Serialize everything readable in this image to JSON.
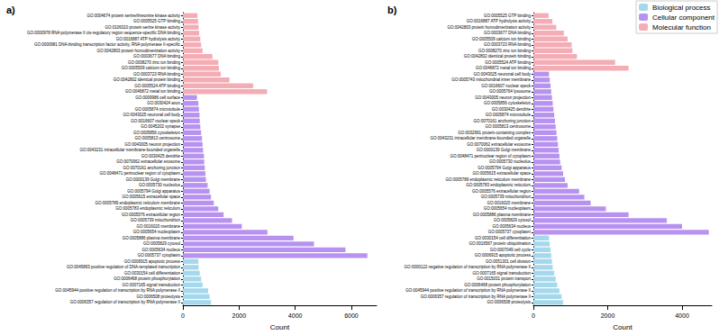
{
  "chart_data": [
    {
      "type": "bar",
      "title": "a)",
      "orientation": "horizontal",
      "grid": false,
      "x_label": "Count",
      "xlim": [
        0,
        6900
      ],
      "xticks": [
        0,
        2000,
        4000,
        6000
      ],
      "categories": [
        "GO:0004674 protein serine/threonine kinase activity",
        "GO:0005525 GTP binding",
        "GO:0106310 protein serine kinase activity",
        "GO:0000978 RNA polymerase II cis-regulatory region sequence-specific DNA binding",
        "GO:0016887 ATP hydrolysis activity",
        "GO:0000981 DNA-binding transcription factor activity, RNA polymerase II-specific",
        "GO:0042803 protein homodimerization activity",
        "GO:0003677 DNA binding",
        "GO:0008270 zinc ion binding",
        "GO:0005509 calcium ion binding",
        "GO:0003723 RNA binding",
        "GO:0042802 identical protein binding",
        "GO:0005524 ATP binding",
        "GO:0046872 metal ion binding",
        "GO:0009986 cell surface",
        "GO:0030424 axon",
        "GO:0005874 microtubule",
        "GO:0043025 neuronal cell body",
        "GO:0016607 nuclear speck",
        "GO:0045202 synapse",
        "GO:0005856 cytoskeleton",
        "GO:0005813 centrosome",
        "GO:0043005 neuron projection",
        "GO:0043231 intracellular membrane-bounded organelle",
        "GO:0030425 dendrite",
        "GO:0070062 extracellular exosome",
        "GO:0070161 anchoring junction",
        "GO:0048471 perinuclear region of cytoplasm",
        "GO:0000139 Golgi membrane",
        "GO:0005730 nucleolus",
        "GO:0005794 Golgi apparatus",
        "GO:0005615 extracellular space",
        "GO:0005789 endoplasmic reticulum membrane",
        "GO:0005783 endoplasmic reticulum",
        "GO:0005576 extracellular region",
        "GO:0005739 mitochondrion",
        "GO:0016020 membrane",
        "GO:0005654 nucleoplasm",
        "GO:0005886 plasma membrane",
        "GO:0005829 cytosol",
        "GO:0005634 nucleus",
        "GO:0005737 cytoplasm",
        "GO:0006915 apoptotic process",
        "GO:0045893 positive regulation of DNA-templated transcription",
        "GO:0030154 cell differentiation",
        "GO:0006468 protein phosphorylation",
        "GO:0007165 signal transduction",
        "GO:0045944 positive regulation of transcription by RNA polymerase II",
        "GO:0006508 proteolysis",
        "GO:0006357 regulation of transcription by RNA polymerase II"
      ],
      "series": [
        {
          "color": "#a5d8ec",
          "values": [
            null,
            null,
            null,
            null,
            null,
            null,
            null,
            null,
            null,
            null,
            null,
            null,
            null,
            null,
            null,
            null,
            null,
            null,
            null,
            null,
            null,
            null,
            null,
            null,
            null,
            null,
            null,
            null,
            null,
            null,
            null,
            null,
            null,
            null,
            null,
            null,
            null,
            null,
            null,
            null,
            null,
            null,
            550,
            560,
            600,
            650,
            700,
            900,
            950,
            1000
          ]
        },
        {
          "color": "#b792f0",
          "values": [
            null,
            null,
            null,
            null,
            null,
            null,
            null,
            null,
            null,
            null,
            null,
            null,
            null,
            null,
            500,
            550,
            570,
            590,
            600,
            620,
            650,
            680,
            700,
            720,
            750,
            760,
            780,
            800,
            820,
            880,
            950,
            1000,
            1100,
            1260,
            1450,
            1750,
            2100,
            3010,
            3940,
            4670,
            5790,
            6570,
            null,
            null,
            null,
            null,
            null,
            null,
            null,
            null
          ]
        },
        {
          "color": "#f4adb5",
          "values": [
            520,
            540,
            560,
            580,
            620,
            650,
            700,
            1050,
            1260,
            1280,
            1350,
            1660,
            2500,
            3000,
            null,
            null,
            null,
            null,
            null,
            null,
            null,
            null,
            null,
            null,
            null,
            null,
            null,
            null,
            null,
            null,
            null,
            null,
            null,
            null,
            null,
            null,
            null,
            null,
            null,
            null,
            null,
            null,
            null,
            null,
            null,
            null,
            null,
            null,
            null,
            null
          ]
        }
      ]
    },
    {
      "type": "bar",
      "title": "b)",
      "orientation": "horizontal",
      "grid": false,
      "legend": "upper right",
      "x_label": "Count",
      "xlim": [
        0,
        4800
      ],
      "xticks": [
        0,
        2000,
        4000
      ],
      "categories": [
        "GO:0005525 GTP binding",
        "GO:0016887 ATP hydrolysis activity",
        "GO:0042803 protein homodimerization activity",
        "GO:0003677 DNA binding",
        "GO:0005509 calcium ion binding",
        "GO:0003723 RNA binding",
        "GO:0008270 zinc ion binding",
        "GO:0042802 identical protein binding",
        "GO:0005524 ATP binding",
        "GO:0046872 metal ion binding",
        "GO:0043025 neuronal cell body",
        "GO:0005743 mitochondrial inner membrane",
        "GO:0016607 nuclear speck",
        "GO:0005764 lysosome",
        "GO:0043005 neuron projection",
        "GO:0005856 cytoskeleton",
        "GO:0030425 dendrite",
        "GO:0005874 microtubule",
        "GO:0070161 anchoring junction",
        "GO:0005813 centrosome",
        "GO:0032991 protein-containing complex",
        "GO:0043231 intracellular membrane-bounded organelle",
        "GO:0070062 extracellular exosome",
        "GO:0000139 Golgi membrane",
        "GO:0048471 perinuclear region of cytoplasm",
        "GO:0005730 nucleolus",
        "GO:0005794 Golgi apparatus",
        "GO:0005615 extracellular space",
        "GO:0005789 endoplasmic reticulum membrane",
        "GO:0005783 endoplasmic reticulum",
        "GO:0005576 extracellular region",
        "GO:0005739 mitochondrion",
        "GO:0016020 membrane",
        "GO:0005654 nucleoplasm",
        "GO:0005886 plasma membrane",
        "GO:0005829 cytosol",
        "GO:0005634 nucleus",
        "GO:0005737 cytoplasm",
        "GO:0030154 cell differentiation",
        "GO:0016567 protein ubiquitination",
        "GO:0007049 cell cycle",
        "GO:0006915 apoptotic process",
        "GO:0051301 cell division",
        "GO:0000122 negative regulation of transcription by RNA polymerase II",
        "GO:0007165 signal transduction",
        "GO:0015031 protein transport",
        "GO:0006468 protein phosphorylation",
        "GO:0045944 positive regulation of transcription by RNA polymerase II",
        "GO:0006357 regulation of transcription by RNA polymerase II",
        "GO:0006508 proteolysis"
      ],
      "series": [
        {
          "name": "Biological process",
          "color": "#a5d8ec",
          "values": [
            null,
            null,
            null,
            null,
            null,
            null,
            null,
            null,
            null,
            null,
            null,
            null,
            null,
            null,
            null,
            null,
            null,
            null,
            null,
            null,
            null,
            null,
            null,
            null,
            null,
            null,
            null,
            null,
            null,
            null,
            null,
            null,
            null,
            null,
            null,
            null,
            null,
            null,
            420,
            440,
            460,
            480,
            500,
            520,
            560,
            600,
            640,
            700,
            760,
            800
          ]
        },
        {
          "name": "Cellular component",
          "color": "#b792f0",
          "values": [
            null,
            null,
            null,
            null,
            null,
            null,
            null,
            null,
            null,
            null,
            420,
            440,
            460,
            480,
            500,
            520,
            540,
            560,
            580,
            600,
            620,
            640,
            660,
            680,
            700,
            720,
            760,
            800,
            850,
            920,
            1230,
            1370,
            1540,
            1950,
            2560,
            3590,
            4000,
            4720,
            null,
            null,
            null,
            null,
            null,
            null,
            null,
            null,
            null,
            null,
            null,
            null
          ]
        },
        {
          "name": "Molecular function",
          "color": "#f4adb5",
          "values": [
            410,
            510,
            615,
            820,
            920,
            1030,
            1050,
            1170,
            2200,
            2560,
            null,
            null,
            null,
            null,
            null,
            null,
            null,
            null,
            null,
            null,
            null,
            null,
            null,
            null,
            null,
            null,
            null,
            null,
            null,
            null,
            null,
            null,
            null,
            null,
            null,
            null,
            null,
            null,
            null,
            null,
            null,
            null,
            null,
            null,
            null,
            null,
            null,
            null,
            null,
            null
          ]
        }
      ]
    }
  ]
}
